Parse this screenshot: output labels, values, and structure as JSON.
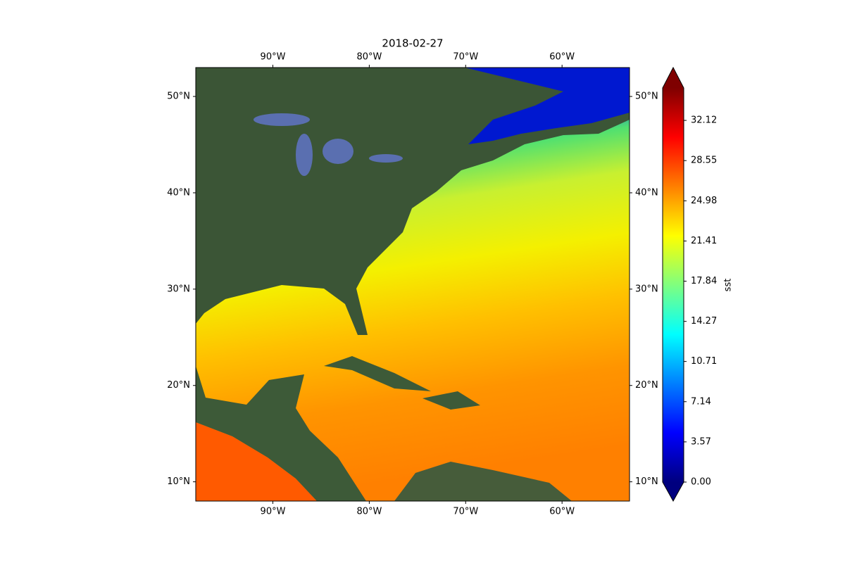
{
  "chart_data": {
    "type": "map",
    "title": "2018-02-27",
    "xlim": [
      -98,
      -53
    ],
    "ylim": [
      8,
      53
    ],
    "xticks": [
      {
        "value": -90,
        "label": "90°W"
      },
      {
        "value": -80,
        "label": "80°W"
      },
      {
        "value": -70,
        "label": "70°W"
      },
      {
        "value": -60,
        "label": "60°W"
      }
    ],
    "yticks": [
      {
        "value": 10,
        "label": "10°N"
      },
      {
        "value": 20,
        "label": "20°N"
      },
      {
        "value": 30,
        "label": "30°N"
      },
      {
        "value": 40,
        "label": "40°N"
      },
      {
        "value": 50,
        "label": "50°N"
      }
    ],
    "colorbar": {
      "label": "sst",
      "colormap": "jet",
      "extend": "both",
      "lim": [
        0,
        35
      ],
      "ticks": [
        {
          "value": 0,
          "label": "0.00"
        },
        3.57,
        7.14,
        10.71,
        14.27,
        17.84,
        21.41,
        24.98,
        28.55,
        32.12
      ]
    }
  }
}
